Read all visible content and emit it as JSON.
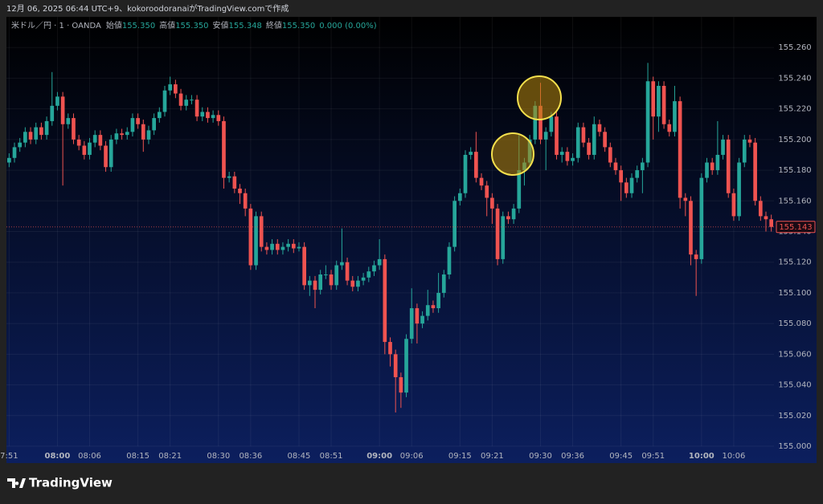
{
  "header": "12月 06, 2025 06:44 UTC+9、kokoroodoranaiがTradingView.comで作成",
  "footer": "TradingView",
  "chart_data": {
    "type": "candlestick",
    "legend": {
      "symbol": "米ドル／円 · 1 · OANDA",
      "open_label": "始値",
      "open": "155.350",
      "high_label": "高値",
      "high": "155.350",
      "low_label": "安値",
      "low": "155.348",
      "close_label": "終値",
      "close": "155.350",
      "change": "0.000 (0.00%)"
    },
    "up_color": "#26a69a",
    "down_color": "#ef5350",
    "grid": true,
    "ylim": [
      155.0,
      155.28
    ],
    "yticks": [
      {
        "value": 155.0,
        "label": "155.000"
      },
      {
        "value": 155.02,
        "label": "155.020"
      },
      {
        "value": 155.04,
        "label": "155.040"
      },
      {
        "value": 155.06,
        "label": "155.060"
      },
      {
        "value": 155.08,
        "label": "155.080"
      },
      {
        "value": 155.1,
        "label": "155.100"
      },
      {
        "value": 155.12,
        "label": "155.120"
      },
      {
        "value": 155.14,
        "label": "155.140"
      },
      {
        "value": 155.16,
        "label": "155.160"
      },
      {
        "value": 155.18,
        "label": "155.180"
      },
      {
        "value": 155.2,
        "label": "155.200"
      },
      {
        "value": 155.22,
        "label": "155.220"
      },
      {
        "value": 155.24,
        "label": "155.240"
      },
      {
        "value": 155.26,
        "label": "155.260"
      }
    ],
    "last_price": {
      "value": 155.143,
      "label": "155.143"
    },
    "categories": [
      "7:51",
      null,
      null,
      null,
      null,
      null,
      null,
      null,
      null,
      "08:00",
      null,
      null,
      null,
      null,
      null,
      "08:06",
      null,
      null,
      null,
      null,
      null,
      null,
      null,
      null,
      "08:15",
      null,
      null,
      null,
      null,
      null,
      "08:21",
      null,
      null,
      null,
      null,
      null,
      null,
      null,
      null,
      "08:30",
      null,
      null,
      null,
      null,
      null,
      "08:36",
      null,
      null,
      null,
      null,
      null,
      null,
      null,
      null,
      "08:45",
      null,
      null,
      null,
      null,
      null,
      "08:51",
      null,
      null,
      null,
      null,
      null,
      null,
      null,
      null,
      "09:00",
      null,
      null,
      null,
      null,
      null,
      "09:06",
      null,
      null,
      null,
      null,
      null,
      null,
      null,
      null,
      "09:15",
      null,
      null,
      null,
      null,
      null,
      "09:21",
      null,
      null,
      null,
      null,
      null,
      null,
      null,
      null,
      "09:30",
      null,
      null,
      null,
      null,
      null,
      "09:36",
      null,
      null,
      null,
      null,
      null,
      null,
      null,
      null,
      "09:45",
      null,
      null,
      null,
      null,
      null,
      "09:51",
      null,
      null,
      null,
      null,
      null,
      null,
      null,
      null,
      "10:00",
      null,
      null,
      null,
      null,
      null,
      "10:06",
      null,
      null,
      null,
      null,
      null,
      null,
      null
    ],
    "values": [
      [
        155.185,
        155.191,
        155.182,
        155.188
      ],
      [
        155.188,
        155.198,
        155.185,
        155.195
      ],
      [
        155.195,
        155.201,
        155.192,
        155.198
      ],
      [
        155.198,
        155.208,
        155.195,
        155.205
      ],
      [
        155.205,
        155.208,
        155.197,
        155.2
      ],
      [
        155.2,
        155.211,
        155.197,
        155.208
      ],
      [
        155.208,
        155.211,
        155.2,
        155.203
      ],
      [
        155.203,
        155.215,
        155.2,
        155.212
      ],
      [
        155.212,
        155.244,
        155.209,
        155.222
      ],
      [
        155.222,
        155.231,
        155.219,
        155.228
      ],
      [
        155.228,
        155.231,
        155.17,
        155.21
      ],
      [
        155.21,
        155.217,
        155.207,
        155.214
      ],
      [
        155.214,
        155.217,
        155.197,
        155.2
      ],
      [
        155.2,
        155.203,
        155.193,
        155.196
      ],
      [
        155.196,
        155.199,
        155.187,
        155.19
      ],
      [
        155.19,
        155.201,
        155.187,
        155.198
      ],
      [
        155.198,
        155.206,
        155.195,
        155.203
      ],
      [
        155.203,
        155.206,
        155.193,
        155.196
      ],
      [
        155.196,
        155.199,
        155.179,
        155.182
      ],
      [
        155.182,
        155.203,
        155.179,
        155.2
      ],
      [
        155.2,
        155.207,
        155.197,
        155.204
      ],
      [
        155.204,
        155.207,
        155.2,
        155.203
      ],
      [
        155.203,
        155.208,
        155.2,
        155.205
      ],
      [
        155.205,
        155.217,
        155.202,
        155.214
      ],
      [
        155.214,
        155.217,
        155.207,
        155.21
      ],
      [
        155.21,
        155.213,
        155.192,
        155.2
      ],
      [
        155.2,
        155.209,
        155.197,
        155.206
      ],
      [
        155.206,
        155.217,
        155.203,
        155.214
      ],
      [
        155.214,
        155.221,
        155.211,
        155.218
      ],
      [
        155.218,
        155.235,
        155.215,
        155.232
      ],
      [
        155.232,
        155.241,
        155.229,
        155.236
      ],
      [
        155.236,
        155.239,
        155.227,
        155.23
      ],
      [
        155.23,
        155.233,
        155.219,
        155.222
      ],
      [
        155.222,
        155.229,
        155.219,
        155.226
      ],
      [
        155.226,
        155.229,
        155.223,
        155.226
      ],
      [
        155.226,
        155.229,
        155.212,
        155.215
      ],
      [
        155.215,
        155.221,
        155.212,
        155.218
      ],
      [
        155.218,
        155.221,
        155.211,
        155.214
      ],
      [
        155.214,
        155.219,
        155.211,
        155.216
      ],
      [
        155.216,
        155.219,
        155.209,
        155.212
      ],
      [
        155.212,
        155.215,
        155.168,
        155.175
      ],
      [
        155.175,
        155.179,
        155.172,
        155.176
      ],
      [
        155.176,
        155.179,
        155.165,
        155.168
      ],
      [
        155.168,
        155.171,
        155.158,
        155.165
      ],
      [
        155.165,
        155.168,
        155.15,
        155.155
      ],
      [
        155.155,
        155.158,
        155.115,
        155.118
      ],
      [
        155.118,
        155.153,
        155.115,
        155.15
      ],
      [
        155.15,
        155.153,
        155.127,
        155.13
      ],
      [
        155.13,
        155.133,
        155.125,
        155.128
      ],
      [
        155.128,
        155.135,
        155.125,
        155.132
      ],
      [
        155.132,
        155.135,
        155.125,
        155.128
      ],
      [
        155.128,
        155.133,
        155.125,
        155.13
      ],
      [
        155.13,
        155.135,
        155.127,
        155.132
      ],
      [
        155.132,
        155.135,
        155.126,
        155.129
      ],
      [
        155.129,
        155.133,
        155.127,
        155.13
      ],
      [
        155.13,
        155.133,
        155.102,
        155.105
      ],
      [
        155.105,
        155.111,
        155.098,
        155.108
      ],
      [
        155.108,
        155.111,
        155.09,
        155.102
      ],
      [
        155.102,
        155.115,
        155.099,
        155.112
      ],
      [
        155.112,
        155.118,
        155.109,
        155.112
      ],
      [
        155.112,
        155.115,
        155.102,
        155.105
      ],
      [
        155.105,
        155.121,
        155.102,
        155.118
      ],
      [
        155.118,
        155.142,
        155.115,
        155.12
      ],
      [
        155.12,
        155.123,
        155.105,
        155.108
      ],
      [
        155.108,
        155.111,
        155.101,
        155.104
      ],
      [
        155.104,
        155.111,
        155.101,
        155.108
      ],
      [
        155.108,
        155.113,
        155.105,
        155.11
      ],
      [
        155.11,
        155.117,
        155.107,
        155.114
      ],
      [
        155.114,
        155.121,
        155.111,
        155.118
      ],
      [
        155.118,
        155.135,
        155.115,
        155.122
      ],
      [
        155.122,
        155.125,
        155.06,
        155.068
      ],
      [
        155.068,
        155.071,
        155.052,
        155.06
      ],
      [
        155.06,
        155.063,
        155.022,
        155.045
      ],
      [
        155.045,
        155.048,
        155.025,
        155.035
      ],
      [
        155.035,
        155.073,
        155.032,
        155.07
      ],
      [
        155.07,
        155.103,
        155.067,
        155.09
      ],
      [
        155.09,
        155.093,
        155.067,
        155.08
      ],
      [
        155.08,
        155.088,
        155.077,
        155.085
      ],
      [
        155.085,
        155.102,
        155.082,
        155.092
      ],
      [
        155.092,
        155.095,
        155.087,
        155.09
      ],
      [
        155.09,
        155.113,
        155.087,
        155.1
      ],
      [
        155.1,
        155.115,
        155.097,
        155.112
      ],
      [
        155.112,
        155.133,
        155.109,
        155.13
      ],
      [
        155.13,
        155.163,
        155.127,
        155.16
      ],
      [
        155.16,
        155.168,
        155.157,
        155.165
      ],
      [
        155.165,
        155.193,
        155.162,
        155.19
      ],
      [
        155.19,
        155.195,
        155.187,
        155.192
      ],
      [
        155.192,
        155.205,
        155.172,
        155.175
      ],
      [
        155.175,
        155.178,
        155.167,
        155.17
      ],
      [
        155.17,
        155.173,
        155.15,
        155.162
      ],
      [
        155.162,
        155.165,
        155.145,
        155.155
      ],
      [
        155.155,
        155.158,
        155.118,
        155.122
      ],
      [
        155.122,
        155.153,
        155.119,
        155.15
      ],
      [
        155.15,
        155.153,
        155.145,
        155.148
      ],
      [
        155.148,
        155.158,
        155.145,
        155.155
      ],
      [
        155.155,
        155.203,
        155.152,
        155.18
      ],
      [
        155.18,
        155.188,
        155.17,
        155.185
      ],
      [
        155.185,
        155.203,
        155.182,
        155.2
      ],
      [
        155.2,
        155.225,
        155.197,
        155.222
      ],
      [
        155.222,
        155.237,
        155.197,
        155.2
      ],
      [
        155.2,
        155.208,
        155.18,
        155.205
      ],
      [
        155.205,
        155.218,
        155.202,
        155.215
      ],
      [
        155.215,
        155.218,
        155.187,
        155.19
      ],
      [
        155.19,
        155.195,
        155.185,
        155.192
      ],
      [
        155.192,
        155.195,
        155.183,
        155.186
      ],
      [
        155.186,
        155.191,
        155.183,
        155.188
      ],
      [
        155.188,
        155.211,
        155.185,
        155.208
      ],
      [
        155.208,
        155.211,
        155.195,
        155.198
      ],
      [
        155.198,
        155.201,
        155.187,
        155.19
      ],
      [
        155.19,
        155.215,
        155.187,
        155.21
      ],
      [
        155.21,
        155.213,
        155.202,
        155.205
      ],
      [
        155.205,
        155.208,
        155.192,
        155.195
      ],
      [
        155.195,
        155.198,
        155.182,
        155.185
      ],
      [
        155.185,
        155.188,
        155.177,
        155.18
      ],
      [
        155.18,
        155.183,
        155.16,
        155.172
      ],
      [
        155.172,
        155.175,
        155.162,
        155.165
      ],
      [
        155.165,
        155.178,
        155.162,
        155.175
      ],
      [
        155.175,
        155.183,
        155.172,
        155.18
      ],
      [
        155.18,
        155.188,
        155.165,
        155.185
      ],
      [
        155.185,
        155.25,
        155.182,
        155.238
      ],
      [
        155.238,
        155.241,
        155.2,
        155.215
      ],
      [
        155.215,
        155.238,
        155.205,
        155.235
      ],
      [
        155.235,
        155.238,
        155.207,
        155.21
      ],
      [
        155.21,
        155.213,
        155.202,
        155.205
      ],
      [
        155.205,
        155.235,
        155.202,
        155.225
      ],
      [
        155.225,
        155.228,
        155.155,
        155.162
      ],
      [
        155.162,
        155.165,
        155.15,
        155.16
      ],
      [
        155.16,
        155.163,
        155.118,
        155.125
      ],
      [
        155.125,
        155.128,
        155.098,
        155.122
      ],
      [
        155.122,
        155.178,
        155.119,
        155.175
      ],
      [
        155.175,
        155.188,
        155.172,
        155.185
      ],
      [
        155.185,
        155.188,
        155.177,
        155.18
      ],
      [
        155.18,
        155.212,
        155.177,
        155.19
      ],
      [
        155.19,
        155.203,
        155.187,
        155.2
      ],
      [
        155.2,
        155.203,
        155.162,
        155.165
      ],
      [
        155.165,
        155.168,
        155.147,
        155.15
      ],
      [
        155.15,
        155.188,
        155.147,
        155.185
      ],
      [
        155.185,
        155.203,
        155.182,
        155.2
      ],
      [
        155.2,
        155.203,
        155.195,
        155.198
      ],
      [
        155.198,
        155.201,
        155.157,
        155.16
      ],
      [
        155.16,
        155.163,
        155.147,
        155.15
      ],
      [
        155.15,
        155.153,
        155.14,
        155.148
      ],
      [
        155.148,
        155.151,
        155.14,
        155.143
      ]
    ]
  }
}
